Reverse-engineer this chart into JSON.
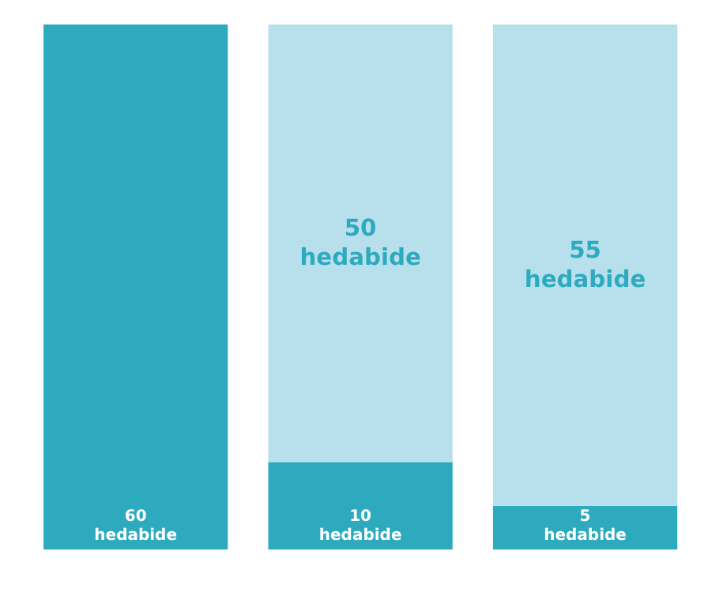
{
  "chart_data": {
    "type": "bar",
    "stacked": true,
    "categories": [
      null,
      null,
      null
    ],
    "series": [
      {
        "color": "#2eaabf",
        "values": [
          60,
          10,
          5
        ],
        "value_labels": [
          "60\nhedabide",
          "10\nhedabide",
          "5\nhedabide"
        ]
      },
      {
        "color": "#b8e0ec",
        "values": [
          0,
          50,
          55
        ],
        "value_labels": [
          null,
          "50\nhedabide",
          "55\nhedabide"
        ]
      }
    ],
    "grid": false,
    "tick_labels": false
  }
}
